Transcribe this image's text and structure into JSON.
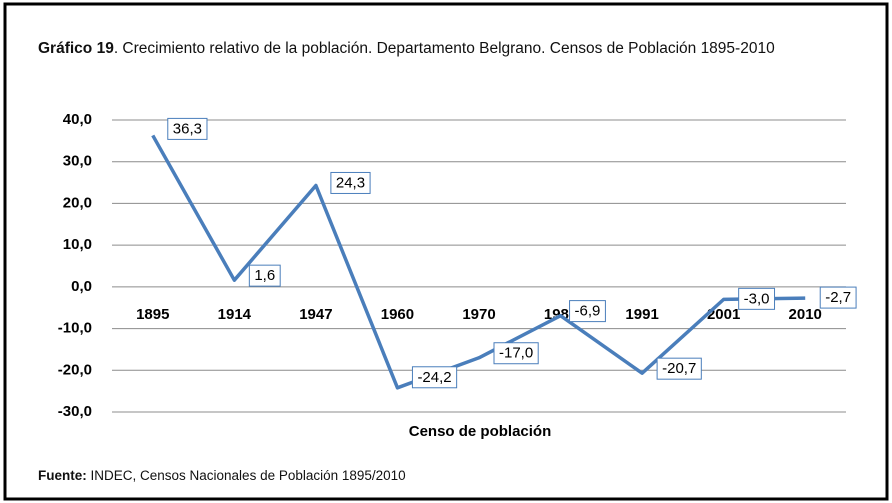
{
  "chart_data": {
    "type": "line",
    "title_bold": "Gráfico 19",
    "title": ". Crecimiento relativo de la población. Departamento Belgrano. Censos de Población 1895-2010",
    "x_label": "Censo de población",
    "source_label": "Fuente:",
    "source": " INDEC, Censos Nacionales de Población 1895/2010",
    "categories": [
      "1895",
      "1914",
      "1947",
      "1960",
      "1970",
      "1980",
      "1991",
      "2001",
      "2010"
    ],
    "series": [
      {
        "color": "#4a7ebb",
        "values": [
          36.3,
          1.6,
          24.3,
          -24.2,
          -17.0,
          -6.9,
          -20.7,
          -3.0,
          -2.7
        ],
        "value_labels": [
          "36,3",
          "1,6",
          "24,3",
          "-24,2",
          "-17,0",
          "-6,9",
          "-20,7",
          "-3,0",
          "-2,7"
        ]
      }
    ],
    "ylim": [
      -30,
      40
    ],
    "yticks": [
      {
        "value": -30,
        "label": "-30,0"
      },
      {
        "value": -20,
        "label": "-20,0"
      },
      {
        "value": -10,
        "label": "-10,0"
      },
      {
        "value": 0,
        "label": "0,0"
      },
      {
        "value": 10,
        "label": "10,0"
      },
      {
        "value": 20,
        "label": "20,0"
      },
      {
        "value": 30,
        "label": "30,0"
      },
      {
        "value": 40,
        "label": "40,0"
      }
    ],
    "grid": true
  }
}
